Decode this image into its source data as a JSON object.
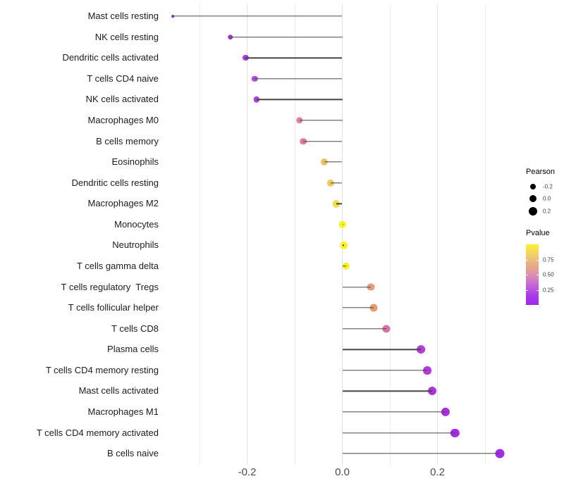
{
  "chart_data": {
    "type": "lollipop",
    "title": "",
    "xlabel": "",
    "ylabel": "",
    "x_tick_labels": [
      "-0.2",
      "0.0",
      "0.2"
    ],
    "x_ticks": [
      -0.2,
      0.0,
      0.2
    ],
    "x_minor_gridlines": [
      -0.3,
      -0.1,
      0.1,
      0.3
    ],
    "xlim": [
      -0.375,
      0.375
    ],
    "grid": "on",
    "legend_position": "right",
    "size_encoding": "Pearson",
    "color_encoding": "Pvalue",
    "points": [
      {
        "label": "Mast cells resting",
        "pearson": -0.356,
        "color": "#8d2be0"
      },
      {
        "label": "NK cells resting",
        "pearson": -0.235,
        "color": "#9c35e1"
      },
      {
        "label": "Dendritic cells activated",
        "pearson": -0.203,
        "color": "#a43ce2"
      },
      {
        "label": "T cells CD4 naive",
        "pearson": -0.184,
        "color": "#ae4ae1"
      },
      {
        "label": "NK cells activated",
        "pearson": -0.18,
        "color": "#a940df"
      },
      {
        "label": "Macrophages M0",
        "pearson": -0.09,
        "color": "#e0809b"
      },
      {
        "label": "B cells memory",
        "pearson": -0.082,
        "color": "#de7d95"
      },
      {
        "label": "Eosinophils",
        "pearson": -0.038,
        "color": "#ecc364"
      },
      {
        "label": "Dendritic cells resting",
        "pearson": -0.024,
        "color": "#eeca58"
      },
      {
        "label": "Macrophages M2",
        "pearson": -0.013,
        "color": "#f3de47"
      },
      {
        "label": "Monocytes",
        "pearson": 0.0,
        "color": "#f8f218"
      },
      {
        "label": "Neutrophils",
        "pearson": 0.003,
        "color": "#f9f513"
      },
      {
        "label": "T cells gamma delta",
        "pearson": 0.008,
        "color": "#f7ef26"
      },
      {
        "label": "T cells regulatory  Tregs",
        "pearson": 0.06,
        "color": "#e89d76"
      },
      {
        "label": "T cells follicular helper",
        "pearson": 0.066,
        "color": "#e79970"
      },
      {
        "label": "T cells CD8",
        "pearson": 0.092,
        "color": "#d671a9"
      },
      {
        "label": "Plasma cells",
        "pearson": 0.165,
        "color": "#b83cdc"
      },
      {
        "label": "T cells CD4 memory resting",
        "pearson": 0.178,
        "color": "#b338de"
      },
      {
        "label": "Mast cells activated",
        "pearson": 0.189,
        "color": "#ae33dd"
      },
      {
        "label": "Macrophages M1",
        "pearson": 0.217,
        "color": "#a92ee2"
      },
      {
        "label": "T cells CD4 memory activated",
        "pearson": 0.237,
        "color": "#a529e7"
      },
      {
        "label": "B cells naive",
        "pearson": 0.331,
        "color": "#a22aea"
      }
    ]
  },
  "legend": {
    "size": {
      "title": "Pearson",
      "dot_color": "#000000",
      "entries": [
        {
          "label": "-0.2",
          "diameter": 8
        },
        {
          "label": "0.0",
          "diameter": 10
        },
        {
          "label": "0.2",
          "diameter": 12
        }
      ]
    },
    "color": {
      "title": "Pvalue",
      "tick_labels": [
        "0.75",
        "0.50",
        "0.25"
      ],
      "tick_positions_pct": [
        25,
        50,
        75
      ],
      "gradient_top_to_bottom": [
        "#fbf42c",
        "#f2cf6b",
        "#e9ad85",
        "#dd8fae",
        "#c767d8",
        "#ab3ce8",
        "#9d28ef"
      ]
    }
  }
}
